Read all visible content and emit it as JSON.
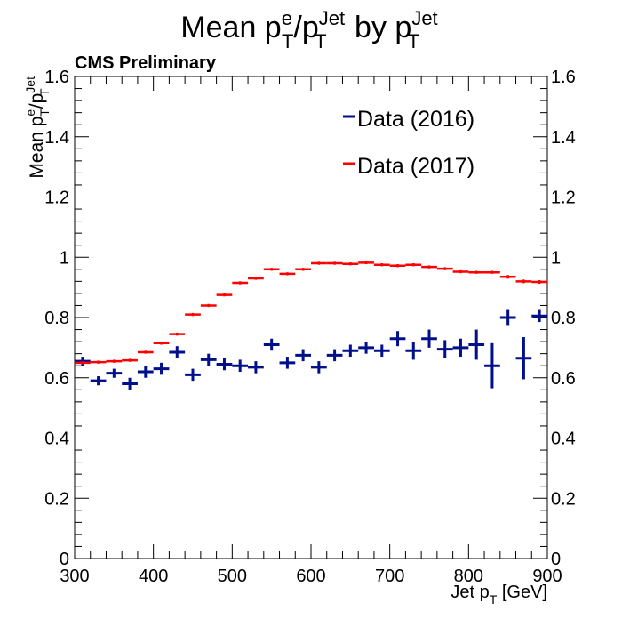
{
  "chart_data": {
    "type": "scatter",
    "title": {
      "base": "Mean p",
      "s1": "e",
      "b1": "T",
      "slash": "/p",
      "s2": "Jet",
      "b2": "T",
      "mid": " by p",
      "s3": "Jet",
      "b3": "T"
    },
    "label": "CMS Preliminary",
    "ylabel": {
      "base": "Mean p",
      "s1": "e",
      "b1": "T",
      "slash": "/p",
      "s2": "Jet",
      "b2": "T"
    },
    "xlabel": {
      "base": "Jet p",
      "sub": "T",
      "unit": " [GeV]"
    },
    "xlim": [
      300,
      900
    ],
    "ylim": [
      0,
      1.6
    ],
    "x_ticks": [
      "300",
      "400",
      "500",
      "600",
      "700",
      "800",
      "900"
    ],
    "y_ticks": [
      "0",
      "0.2",
      "0.4",
      "0.6",
      "0.8",
      "1",
      "1.2",
      "1.4",
      "1.6"
    ],
    "legend_position": "top-right",
    "series": [
      {
        "name": "Data (2016)",
        "color": "#000f8c",
        "x": [
          310,
          330,
          350,
          370,
          390,
          410,
          430,
          450,
          470,
          490,
          510,
          530,
          550,
          570,
          590,
          610,
          630,
          650,
          670,
          690,
          710,
          730,
          750,
          770,
          790,
          810,
          830,
          850,
          870,
          890
        ],
        "y": [
          0.655,
          0.59,
          0.615,
          0.58,
          0.62,
          0.63,
          0.685,
          0.61,
          0.66,
          0.645,
          0.64,
          0.635,
          0.71,
          0.65,
          0.675,
          0.635,
          0.675,
          0.69,
          0.7,
          0.69,
          0.73,
          0.69,
          0.73,
          0.695,
          0.7,
          0.71,
          0.64,
          0.8,
          0.665,
          0.805
        ],
        "yerr": [
          0.015,
          0.015,
          0.015,
          0.02,
          0.02,
          0.02,
          0.02,
          0.02,
          0.02,
          0.02,
          0.02,
          0.02,
          0.02,
          0.02,
          0.02,
          0.02,
          0.02,
          0.02,
          0.02,
          0.02,
          0.025,
          0.03,
          0.03,
          0.03,
          0.03,
          0.05,
          0.075,
          0.025,
          0.07,
          0.02
        ]
      },
      {
        "name": "Data (2017)",
        "color": "#ff0000",
        "x": [
          310,
          330,
          350,
          370,
          390,
          410,
          430,
          450,
          470,
          490,
          510,
          530,
          550,
          570,
          590,
          610,
          630,
          650,
          670,
          690,
          710,
          730,
          750,
          770,
          790,
          810,
          830,
          850,
          870,
          890
        ],
        "y": [
          0.65,
          0.652,
          0.655,
          0.658,
          0.685,
          0.715,
          0.745,
          0.81,
          0.84,
          0.875,
          0.915,
          0.93,
          0.96,
          0.945,
          0.96,
          0.98,
          0.98,
          0.978,
          0.982,
          0.975,
          0.972,
          0.975,
          0.968,
          0.962,
          0.952,
          0.95,
          0.95,
          0.935,
          0.92,
          0.918
        ],
        "yerr": [
          0.005,
          0.005,
          0.005,
          0.005,
          0.005,
          0.005,
          0.005,
          0.005,
          0.005,
          0.005,
          0.005,
          0.005,
          0.005,
          0.005,
          0.005,
          0.005,
          0.005,
          0.005,
          0.005,
          0.005,
          0.005,
          0.005,
          0.005,
          0.005,
          0.005,
          0.005,
          0.005,
          0.006,
          0.006,
          0.006
        ]
      }
    ]
  }
}
